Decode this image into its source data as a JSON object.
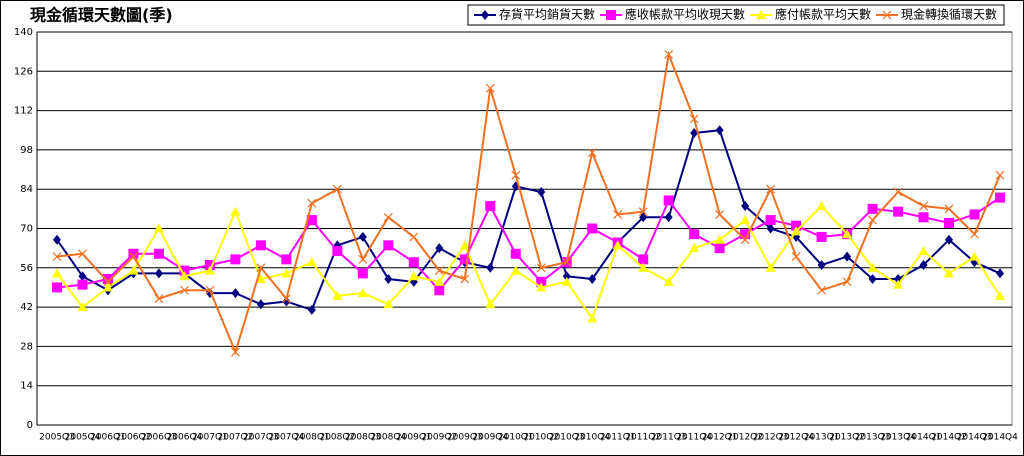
{
  "chart_data": {
    "type": "line",
    "title": "現金循環天數圖(季)",
    "categories": [
      "2005Q3",
      "2005Q4",
      "2006Q1",
      "2006Q2",
      "2006Q3",
      "2006Q4",
      "2007Q1",
      "2007Q2",
      "2007Q3",
      "2007Q4",
      "2008Q1",
      "2008Q2",
      "2008Q3",
      "2008Q4",
      "2009Q1",
      "2009Q2",
      "2009Q3",
      "2009Q4",
      "2010Q1",
      "2010Q2",
      "2010Q3",
      "2010Q4",
      "2011Q1",
      "2011Q2",
      "2011Q3",
      "2011Q4",
      "2012Q1",
      "2012Q2",
      "2012Q3",
      "2012Q4",
      "2013Q1",
      "2013Q2",
      "2013Q3",
      "2013Q4",
      "2014Q1",
      "2014Q2",
      "2014Q3",
      "2014Q4"
    ],
    "series": [
      {
        "name": "存貨平均銷貨天數",
        "color": "#000080",
        "marker": "diamond",
        "values": [
          66,
          53,
          48,
          54,
          54,
          54,
          47,
          47,
          43,
          44,
          41,
          64,
          67,
          52,
          51,
          63,
          58,
          56,
          85,
          83,
          53,
          52,
          65,
          74,
          74,
          104,
          105,
          78,
          70,
          67,
          57,
          60,
          52,
          52,
          57,
          66,
          58,
          54
        ]
      },
      {
        "name": "應收帳款平均收現天數",
        "color": "#ff00ff",
        "marker": "square",
        "values": [
          49,
          50,
          52,
          61,
          61,
          55,
          57,
          59,
          64,
          59,
          73,
          62,
          54,
          64,
          58,
          48,
          59,
          78,
          61,
          51,
          58,
          70,
          65,
          59,
          80,
          68,
          63,
          68,
          73,
          71,
          67,
          68,
          77,
          76,
          74,
          72,
          75,
          81
        ]
      },
      {
        "name": "應付帳款平均天數",
        "color": "#ffff00",
        "marker": "triangle",
        "values": [
          54,
          42,
          49,
          55,
          70,
          53,
          55,
          76,
          52,
          54,
          58,
          46,
          47,
          43,
          53,
          51,
          64,
          43,
          55,
          49,
          51,
          38,
          64,
          56,
          51,
          63,
          66,
          73,
          56,
          69,
          78,
          68,
          56,
          50,
          62,
          54,
          60,
          46
        ]
      },
      {
        "name": "現金轉換循環天數",
        "color": "#f07020",
        "marker": "x",
        "values": [
          60,
          61,
          51,
          60,
          45,
          48,
          48,
          26,
          56,
          45,
          79,
          84,
          59,
          74,
          67,
          55,
          52,
          120,
          89,
          56,
          58,
          97,
          75,
          76,
          132,
          109,
          75,
          66,
          84,
          60,
          48,
          51,
          73,
          83,
          78,
          77,
          68,
          89
        ]
      }
    ],
    "ylim": [
      0,
      140
    ],
    "yticks": [
      0,
      14,
      28,
      42,
      56,
      70,
      84,
      98,
      112,
      126,
      140
    ],
    "grid": true,
    "legend": "top-right"
  }
}
